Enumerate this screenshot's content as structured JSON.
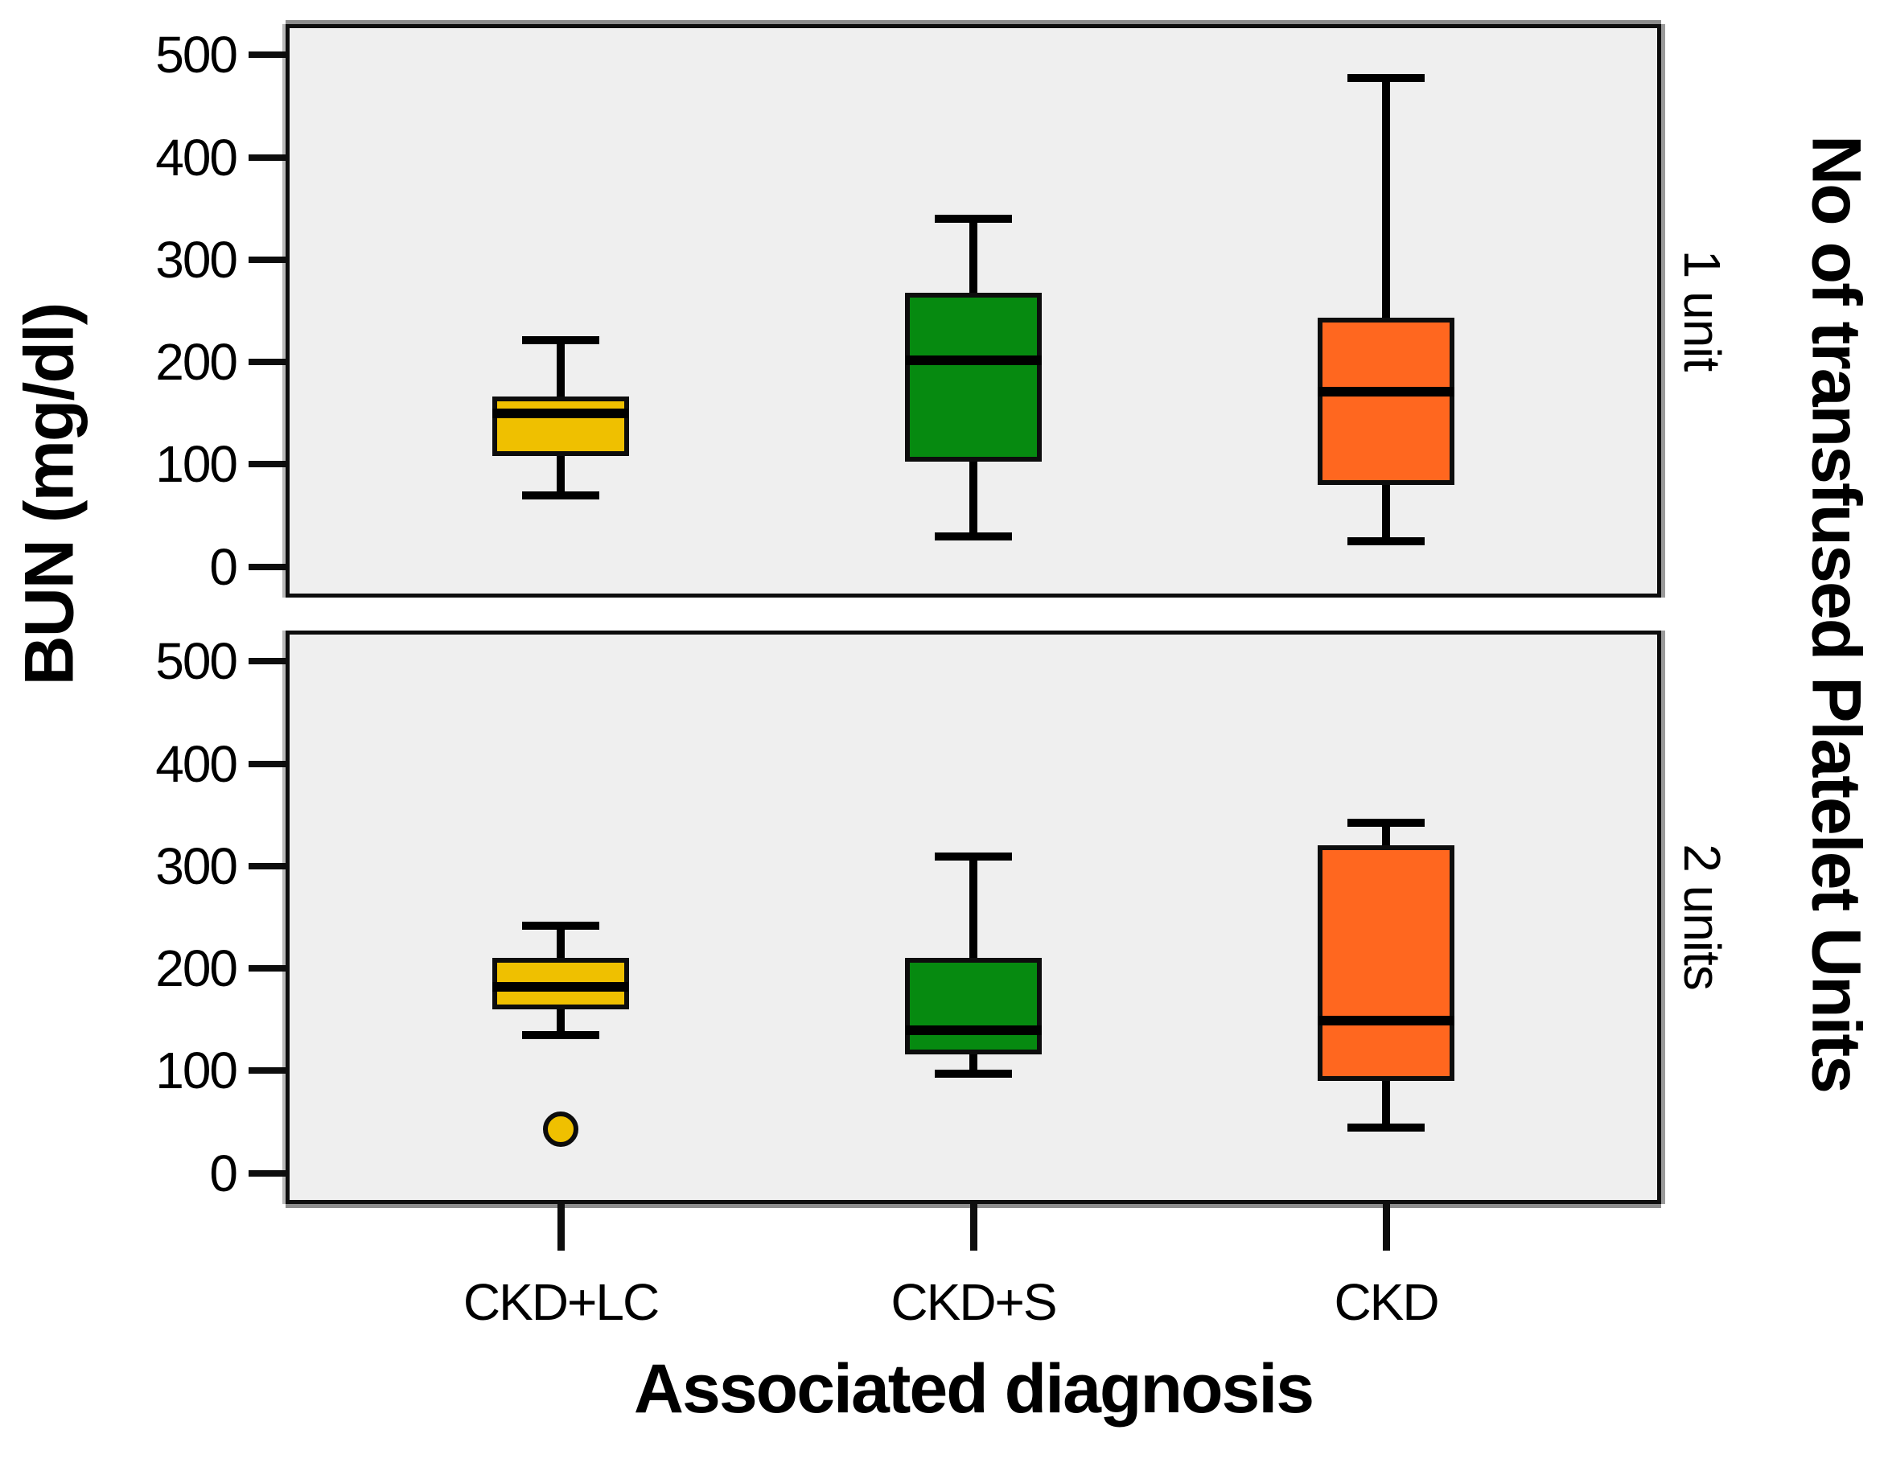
{
  "chart_data": {
    "type": "boxplot",
    "title": "",
    "xlabel": "Associated diagnosis",
    "ylabel": "BUN (mg/dl)",
    "facet_axis_title": "No of transfused Platelet Units",
    "categories": [
      "CKD+LC",
      "CKD+S",
      "CKD"
    ],
    "y_ticks": [
      500,
      400,
      300,
      200,
      100,
      0
    ],
    "ylim": [
      -30,
      530
    ],
    "grid": false,
    "legend": "none",
    "panel_bg": "#efefef",
    "colors": {
      "CKD+LC": "#efc000",
      "CKD+S": "#068a10",
      "CKD": "#ff671f"
    },
    "facets": [
      {
        "label": "1 unit",
        "boxes": [
          {
            "category": "CKD+LC",
            "color": "#efc000",
            "min": 70,
            "q1": 108,
            "median": 150,
            "q3": 166,
            "max": 222,
            "outliers": []
          },
          {
            "category": "CKD+S",
            "color": "#068a10",
            "min": 30,
            "q1": 103,
            "median": 202,
            "q3": 268,
            "max": 340,
            "outliers": []
          },
          {
            "category": "CKD",
            "color": "#ff671f",
            "min": 25,
            "q1": 80,
            "median": 171,
            "q3": 243,
            "max": 478,
            "outliers": []
          }
        ]
      },
      {
        "label": "2 units",
        "boxes": [
          {
            "category": "CKD+LC",
            "color": "#efc000",
            "min": 135,
            "q1": 160,
            "median": 182,
            "q3": 210,
            "max": 242,
            "outliers": [
              43
            ]
          },
          {
            "category": "CKD+S",
            "color": "#068a10",
            "min": 97,
            "q1": 116,
            "median": 140,
            "q3": 210,
            "max": 310,
            "outliers": []
          },
          {
            "category": "CKD",
            "color": "#ff671f",
            "min": 45,
            "q1": 90,
            "median": 149,
            "q3": 320,
            "max": 343,
            "outliers": []
          }
        ]
      }
    ]
  }
}
